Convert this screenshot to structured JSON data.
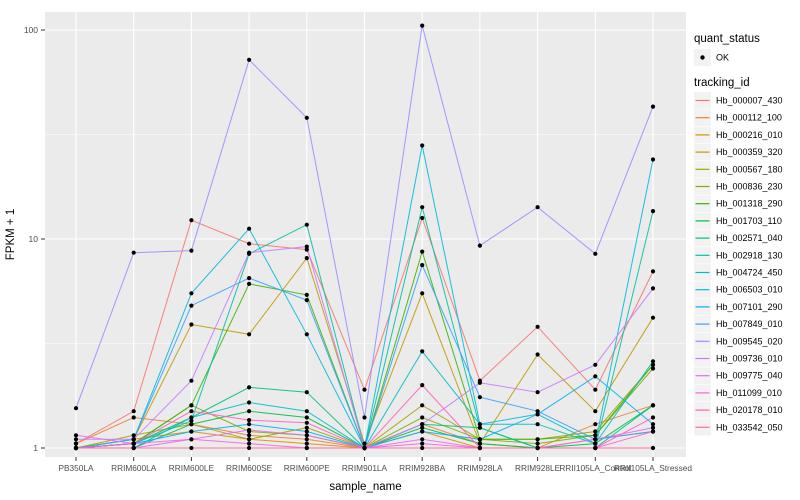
{
  "figure": {
    "background": "#FFFFFF",
    "panel_bg": "#EBEBEB",
    "grid_color": "#FFFFFF",
    "tick_color": "#333333",
    "tick_label_color": "#4D4D4D",
    "point_color": "#000000",
    "legend_key_bg": "#F2F2F2"
  },
  "chart_data": {
    "type": "line",
    "title": "",
    "xlabel": "sample_name",
    "ylabel": "FPKM + 1",
    "yscale": "log10",
    "yticks": [
      "1",
      "10",
      "100"
    ],
    "ytick_values": [
      1,
      10,
      100
    ],
    "yminor_values": [
      3.1623,
      31.623
    ],
    "ylim": [
      0.93,
      130
    ],
    "grid": true,
    "legend_position": "right",
    "categories": [
      "PB350LA",
      "RRIM600LA",
      "RRIM600LE",
      "RRIM600SE",
      "RRIM600PE",
      "RRIM901LA",
      "RRIM928BA",
      "RRIM928LA",
      "RRIM928LE",
      "RRII105LA_Control",
      "RRII105LA_Stressed"
    ],
    "quant_status": {
      "title": "quant_status",
      "items": [
        {
          "label": "OK"
        }
      ]
    },
    "tracking_title": "tracking_id",
    "series": [
      {
        "name": "Hb_000007_430",
        "color": "#F8766D",
        "values": [
          1.05,
          1.5,
          12.3,
          9.5,
          8.9,
          1.9,
          12.6,
          2.1,
          3.8,
          1.9,
          7.0
        ]
      },
      {
        "name": "Hb_000112_100",
        "color": "#EA8331",
        "values": [
          1.05,
          1.4,
          1.3,
          1.15,
          1.1,
          1.0,
          1.3,
          1.05,
          1.0,
          1.3,
          1.6
        ]
      },
      {
        "name": "Hb_000216_010",
        "color": "#D89000",
        "values": [
          1.0,
          1.1,
          1.2,
          1.1,
          1.05,
          1.0,
          1.2,
          1.0,
          1.0,
          1.1,
          1.2
        ]
      },
      {
        "name": "Hb_000359_320",
        "color": "#C09B00",
        "values": [
          1.0,
          1.1,
          3.9,
          3.5,
          8.1,
          1.05,
          5.5,
          1.05,
          2.8,
          1.5,
          4.2
        ]
      },
      {
        "name": "Hb_000567_180",
        "color": "#A3A500",
        "values": [
          1.0,
          1.15,
          1.3,
          1.1,
          1.25,
          1.0,
          1.6,
          1.1,
          1.1,
          1.2,
          2.5
        ]
      },
      {
        "name": "Hb_000836_230",
        "color": "#7CAE00",
        "values": [
          1.0,
          1.05,
          1.6,
          1.2,
          1.15,
          1.0,
          1.4,
          1.1,
          1.05,
          1.15,
          2.4
        ]
      },
      {
        "name": "Hb_001318_290",
        "color": "#39B600",
        "values": [
          1.0,
          1.05,
          1.6,
          6.1,
          5.4,
          1.0,
          8.7,
          1.1,
          1.1,
          1.15,
          2.5
        ]
      },
      {
        "name": "Hb_001703_110",
        "color": "#00BB4E",
        "values": [
          1.0,
          1.0,
          1.3,
          1.5,
          1.4,
          1.0,
          1.25,
          1.05,
          1.0,
          1.05,
          1.6
        ]
      },
      {
        "name": "Hb_002571_040",
        "color": "#00BF7D",
        "values": [
          1.0,
          1.05,
          1.4,
          1.95,
          1.85,
          1.0,
          1.3,
          1.25,
          1.0,
          1.0,
          1.6
        ]
      },
      {
        "name": "Hb_002918_130",
        "color": "#00C1A3",
        "values": [
          1.0,
          1.05,
          1.35,
          8.5,
          11.7,
          1.0,
          14.2,
          1.25,
          1.0,
          1.0,
          13.6
        ]
      },
      {
        "name": "Hb_004724_450",
        "color": "#00BFC4",
        "values": [
          1.0,
          1.0,
          1.4,
          1.65,
          1.5,
          1.0,
          2.9,
          1.3,
          1.3,
          1.05,
          2.6
        ]
      },
      {
        "name": "Hb_006503_010",
        "color": "#00BAE0",
        "values": [
          1.0,
          1.1,
          5.5,
          11.2,
          3.5,
          1.0,
          28.0,
          1.3,
          1.45,
          1.05,
          24.0
        ]
      },
      {
        "name": "Hb_007101_290",
        "color": "#00B0F6",
        "values": [
          1.0,
          1.05,
          1.2,
          1.3,
          1.2,
          1.0,
          1.2,
          1.1,
          1.45,
          2.2,
          1.3
        ]
      },
      {
        "name": "Hb_007849_010",
        "color": "#35A2FF",
        "values": [
          1.0,
          1.1,
          4.8,
          6.5,
          5.1,
          1.0,
          7.5,
          1.75,
          1.5,
          1.1,
          1.2
        ]
      },
      {
        "name": "Hb_009545_020",
        "color": "#9590FF",
        "values": [
          1.55,
          8.6,
          8.8,
          72.0,
          38.0,
          1.4,
          105.0,
          9.3,
          14.2,
          8.5,
          43.0
        ]
      },
      {
        "name": "Hb_009736_010",
        "color": "#C77CFF",
        "values": [
          1.1,
          1.1,
          2.1,
          8.6,
          9.2,
          1.0,
          1.3,
          2.05,
          1.85,
          2.5,
          5.8
        ]
      },
      {
        "name": "Hb_009775_040",
        "color": "#E76BF3",
        "values": [
          1.15,
          1.05,
          1.1,
          1.22,
          1.15,
          1.0,
          1.1,
          1.0,
          1.0,
          1.1,
          1.25
        ]
      },
      {
        "name": "Hb_011099_010",
        "color": "#FA62DB",
        "values": [
          1.0,
          1.0,
          1.1,
          1.05,
          1.0,
          1.0,
          1.05,
          1.0,
          1.0,
          1.0,
          1.2
        ]
      },
      {
        "name": "Hb_020178_010",
        "color": "#FF62BC",
        "values": [
          1.0,
          1.05,
          1.5,
          1.36,
          1.32,
          1.0,
          2.0,
          1.0,
          1.0,
          1.0,
          1.4
        ]
      },
      {
        "name": "Hb_033542_050",
        "color": "#FF6A98",
        "values": [
          1.0,
          1.0,
          1.0,
          1.0,
          1.0,
          1.0,
          1.0,
          1.0,
          1.0,
          1.0,
          1.0
        ]
      }
    ]
  }
}
